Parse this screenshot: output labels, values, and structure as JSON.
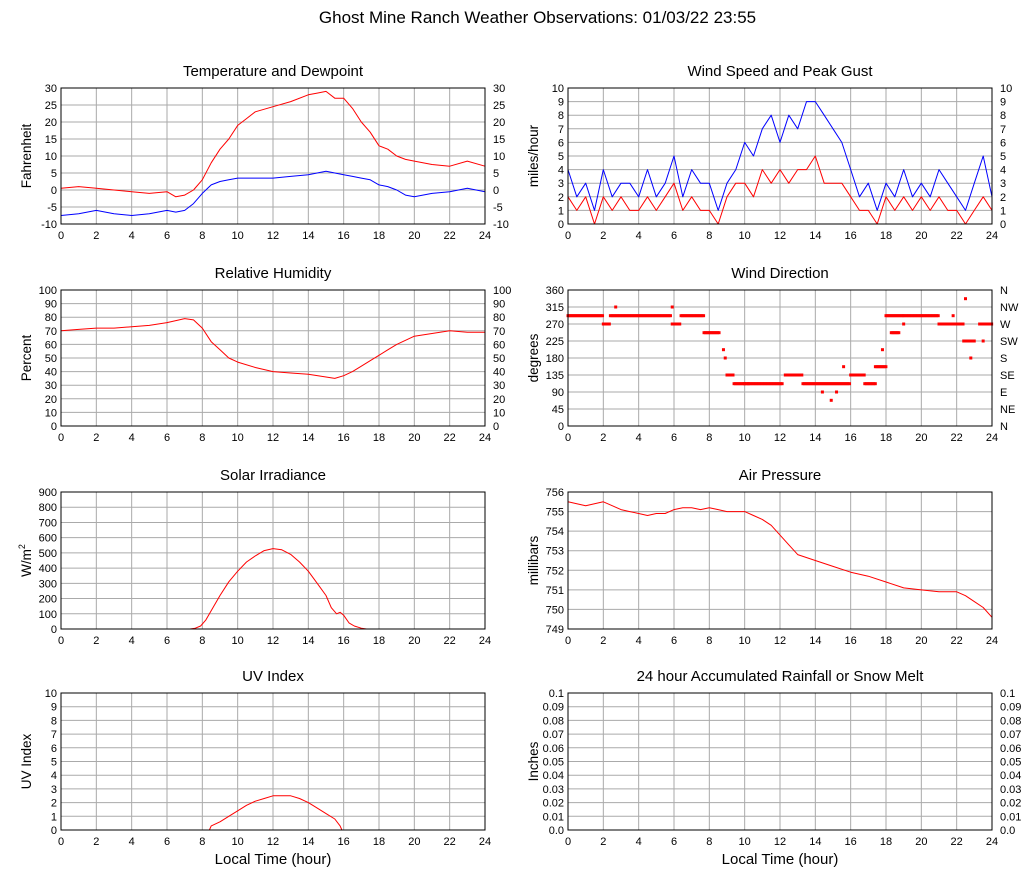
{
  "page_title": "Ghost Mine Ranch Weather Observations: 01/03/22 23:55",
  "colors": {
    "red": "#ff0000",
    "blue": "#0000ff",
    "grid": "#aaaaaa"
  },
  "chart_data": [
    {
      "id": "temp",
      "type": "line",
      "title": "Temperature and Dewpoint",
      "ylabel": "Fahrenheit",
      "xlabel": "",
      "xlim": [
        0,
        24
      ],
      "ylim": [
        -10,
        30
      ],
      "xticks": [
        0,
        2,
        4,
        6,
        8,
        10,
        12,
        14,
        16,
        18,
        20,
        22,
        24
      ],
      "yticks": [
        -10,
        -5,
        0,
        5,
        10,
        15,
        20,
        25,
        30
      ],
      "right_ticks": [
        "-10",
        "-5",
        "0",
        "5",
        "10",
        "15",
        "20",
        "25",
        "30"
      ],
      "series": [
        {
          "color": "#ff0000",
          "x": [
            0,
            1,
            2,
            3,
            4,
            5,
            6,
            6.5,
            7,
            7.5,
            8,
            8.5,
            9,
            9.5,
            10,
            10.5,
            11,
            12,
            13,
            14,
            14.5,
            15,
            15.5,
            16,
            16.5,
            17,
            17.5,
            18,
            18.5,
            19,
            19.5,
            20,
            21,
            22,
            23,
            24
          ],
          "y": [
            0.5,
            1,
            0.5,
            0,
            -0.5,
            -1,
            -0.5,
            -2,
            -1.5,
            0,
            3,
            8,
            12,
            15,
            19,
            21,
            23,
            24.5,
            26,
            28,
            28.5,
            29,
            27,
            27,
            24,
            20,
            17,
            13,
            12,
            10,
            9,
            8.5,
            7.5,
            7,
            8.5,
            7
          ]
        },
        {
          "color": "#0000ff",
          "x": [
            0,
            1,
            2,
            3,
            4,
            5,
            6,
            6.5,
            7,
            7.5,
            8,
            8.5,
            9,
            9.5,
            10,
            11,
            12,
            13,
            14,
            15,
            16,
            16.5,
            17,
            17.5,
            18,
            18.5,
            19,
            19.5,
            20,
            21,
            22,
            23,
            24
          ],
          "y": [
            -7.5,
            -7,
            -6,
            -7,
            -7.5,
            -7,
            -6,
            -6.5,
            -6,
            -4,
            -1,
            1.5,
            2.5,
            3,
            3.5,
            3.5,
            3.5,
            4,
            4.5,
            5.5,
            4.5,
            4,
            3.5,
            3,
            1.5,
            1,
            0,
            -1.5,
            -2,
            -1,
            -0.5,
            0.5,
            -0.5
          ]
        }
      ]
    },
    {
      "id": "wind",
      "type": "line",
      "title": "Wind Speed and Peak Gust",
      "ylabel": "miles/hour",
      "xlabel": "",
      "xlim": [
        0,
        24
      ],
      "ylim": [
        0,
        10
      ],
      "xticks": [
        0,
        2,
        4,
        6,
        8,
        10,
        12,
        14,
        16,
        18,
        20,
        22,
        24
      ],
      "yticks": [
        0,
        1,
        2,
        3,
        4,
        5,
        6,
        7,
        8,
        9,
        10
      ],
      "right_ticks": [
        "0",
        "1",
        "2",
        "3",
        "4",
        "5",
        "6",
        "7",
        "8",
        "9",
        "10"
      ],
      "series": [
        {
          "color": "#0000ff",
          "x": [
            0,
            0.5,
            1,
            1.5,
            2,
            2.5,
            3,
            3.5,
            4,
            4.5,
            5,
            5.5,
            6,
            6.5,
            7,
            7.5,
            8,
            8.5,
            9,
            9.5,
            10,
            10.5,
            11,
            11.5,
            12,
            12.5,
            13,
            13.5,
            14,
            14.5,
            15,
            15.5,
            16,
            16.5,
            17,
            17.5,
            18,
            18.5,
            19,
            19.5,
            20,
            20.5,
            21,
            21.5,
            22,
            22.5,
            23,
            23.5,
            24
          ],
          "y": [
            4,
            2,
            3,
            1,
            4,
            2,
            3,
            3,
            2,
            4,
            2,
            3,
            5,
            2,
            4,
            3,
            3,
            1,
            3,
            4,
            6,
            5,
            7,
            8,
            6,
            8,
            7,
            9,
            9,
            8,
            7,
            6,
            4,
            2,
            3,
            1,
            3,
            2,
            4,
            2,
            3,
            2,
            4,
            3,
            2,
            1,
            3,
            5,
            2
          ]
        },
        {
          "color": "#ff0000",
          "x": [
            0,
            0.5,
            1,
            1.5,
            2,
            2.5,
            3,
            3.5,
            4,
            4.5,
            5,
            5.5,
            6,
            6.5,
            7,
            7.5,
            8,
            8.5,
            9,
            9.5,
            10,
            10.5,
            11,
            11.5,
            12,
            12.5,
            13,
            13.5,
            14,
            14.5,
            15,
            15.5,
            16,
            16.5,
            17,
            17.5,
            18,
            18.5,
            19,
            19.5,
            20,
            20.5,
            21,
            21.5,
            22,
            22.5,
            23,
            23.5,
            24
          ],
          "y": [
            2,
            1,
            2,
            0,
            2,
            1,
            2,
            1,
            1,
            2,
            1,
            2,
            3,
            1,
            2,
            1,
            1,
            0,
            2,
            3,
            3,
            2,
            4,
            3,
            4,
            3,
            4,
            4,
            5,
            3,
            3,
            3,
            2,
            1,
            1,
            0,
            2,
            1,
            2,
            1,
            2,
            1,
            2,
            1,
            1,
            0,
            1,
            2,
            1
          ]
        }
      ]
    },
    {
      "id": "rh",
      "type": "line",
      "title": "Relative Humidity",
      "ylabel": "Percent",
      "xlabel": "",
      "xlim": [
        0,
        24
      ],
      "ylim": [
        0,
        100
      ],
      "xticks": [
        0,
        2,
        4,
        6,
        8,
        10,
        12,
        14,
        16,
        18,
        20,
        22,
        24
      ],
      "yticks": [
        0,
        10,
        20,
        30,
        40,
        50,
        60,
        70,
        80,
        90,
        100
      ],
      "right_ticks": [
        "0",
        "10",
        "20",
        "30",
        "40",
        "50",
        "60",
        "70",
        "80",
        "90",
        "100"
      ],
      "series": [
        {
          "color": "#ff0000",
          "x": [
            0,
            1,
            2,
            3,
            4,
            5,
            6,
            7,
            7.5,
            8,
            8.5,
            9,
            9.5,
            10,
            11,
            12,
            13,
            14,
            15,
            15.5,
            16,
            16.5,
            17,
            17.5,
            18,
            18.5,
            19,
            19.5,
            20,
            21,
            22,
            23,
            24
          ],
          "y": [
            70,
            71,
            72,
            72,
            73,
            74,
            76,
            79,
            78,
            72,
            62,
            56,
            50,
            47,
            43,
            40,
            39,
            38,
            36,
            35,
            37,
            40,
            44,
            48,
            52,
            56,
            60,
            63,
            66,
            68,
            70,
            69,
            69
          ]
        }
      ]
    },
    {
      "id": "dir",
      "type": "scatter",
      "title": "Wind Direction",
      "ylabel": "degrees",
      "xlabel": "",
      "xlim": [
        0,
        24
      ],
      "ylim": [
        0,
        360
      ],
      "xticks": [
        0,
        2,
        4,
        6,
        8,
        10,
        12,
        14,
        16,
        18,
        20,
        22,
        24
      ],
      "yticks": [
        0,
        45,
        90,
        135,
        180,
        225,
        270,
        315,
        360
      ],
      "right_ticks": [
        "N",
        "NE",
        "E",
        "SE",
        "S",
        "SW",
        "W",
        "NW",
        "N"
      ],
      "series": [
        {
          "color": "#ff0000",
          "segments": [
            [
              0,
              2,
              292
            ],
            [
              2,
              2.4,
              270
            ],
            [
              2.4,
              5.8,
              292
            ],
            [
              5.9,
              6.4,
              270
            ],
            [
              6.4,
              7.7,
              292
            ],
            [
              7.7,
              8.6,
              247
            ],
            [
              9,
              9.4,
              135
            ],
            [
              9.4,
              12.2,
              112
            ],
            [
              12.3,
              13.3,
              135
            ],
            [
              13.3,
              16,
              112
            ],
            [
              16,
              16.8,
              135
            ],
            [
              16.8,
              17.4,
              112
            ],
            [
              17.4,
              18,
              157
            ],
            [
              18,
              19,
              292
            ],
            [
              18.3,
              18.8,
              247
            ],
            [
              19,
              21,
              292
            ],
            [
              21,
              22.4,
              270
            ],
            [
              22.4,
              23,
              225
            ],
            [
              23.3,
              24,
              270
            ]
          ],
          "singles": [
            [
              2.7,
              315
            ],
            [
              5.9,
              315
            ],
            [
              8.8,
              202
            ],
            [
              8.9,
              180
            ],
            [
              10,
              112
            ],
            [
              10.2,
              112
            ],
            [
              14.4,
              90
            ],
            [
              14.9,
              68
            ],
            [
              15.2,
              90
            ],
            [
              15.6,
              157
            ],
            [
              17.8,
              202
            ],
            [
              19,
              270
            ],
            [
              21.8,
              292
            ],
            [
              22.5,
              337
            ],
            [
              22.8,
              180
            ],
            [
              23.5,
              225
            ]
          ]
        }
      ]
    },
    {
      "id": "solar",
      "type": "line",
      "title": "Solar Irradiance",
      "ylabel": "W/m",
      "ylabel_sup": "2",
      "xlabel": "",
      "xlim": [
        0,
        24
      ],
      "ylim": [
        0,
        900
      ],
      "xticks": [
        0,
        2,
        4,
        6,
        8,
        10,
        12,
        14,
        16,
        18,
        20,
        22,
        24
      ],
      "yticks": [
        0,
        100,
        200,
        300,
        400,
        500,
        600,
        700,
        800,
        900
      ],
      "right_ticks": [],
      "series": [
        {
          "color": "#ff0000",
          "x": [
            0,
            7.3,
            7.6,
            7.9,
            8.2,
            8.6,
            9,
            9.5,
            10,
            10.5,
            11,
            11.5,
            12,
            12.5,
            13,
            13.5,
            14,
            14.5,
            15,
            15.3,
            15.6,
            15.8,
            16,
            16.3,
            16.6,
            17,
            17.3,
            24
          ],
          "y": [
            0,
            0,
            5,
            20,
            60,
            140,
            220,
            310,
            380,
            440,
            480,
            515,
            528,
            520,
            490,
            440,
            380,
            300,
            220,
            140,
            100,
            110,
            90,
            40,
            20,
            5,
            0,
            0
          ]
        }
      ]
    },
    {
      "id": "pressure",
      "type": "line",
      "title": "Air Pressure",
      "ylabel": "millibars",
      "xlabel": "",
      "xlim": [
        0,
        24
      ],
      "ylim": [
        749,
        756
      ],
      "xticks": [
        0,
        2,
        4,
        6,
        8,
        10,
        12,
        14,
        16,
        18,
        20,
        22,
        24
      ],
      "yticks": [
        749,
        750,
        751,
        752,
        753,
        754,
        755,
        756
      ],
      "right_ticks": [],
      "series": [
        {
          "color": "#ff0000",
          "x": [
            0,
            0.5,
            1,
            1.5,
            2,
            2.5,
            3,
            3.5,
            4,
            4.5,
            5,
            5.5,
            6,
            6.5,
            7,
            7.5,
            8,
            8.5,
            9,
            9.5,
            10,
            10.5,
            11,
            11.5,
            12,
            12.5,
            13,
            14,
            15,
            16,
            17,
            18,
            19,
            20,
            21,
            22,
            22.5,
            23,
            23.5,
            24
          ],
          "y": [
            755.5,
            755.4,
            755.3,
            755.4,
            755.5,
            755.3,
            755.1,
            755.0,
            754.9,
            754.8,
            754.9,
            754.9,
            755.1,
            755.2,
            755.2,
            755.1,
            755.2,
            755.1,
            755.0,
            755.0,
            755.0,
            754.8,
            754.6,
            754.3,
            753.8,
            753.3,
            752.8,
            752.5,
            752.2,
            751.9,
            751.7,
            751.4,
            751.1,
            751.0,
            750.9,
            750.9,
            750.7,
            750.4,
            750.1,
            749.6
          ]
        }
      ]
    },
    {
      "id": "uv",
      "type": "line",
      "title": "UV Index",
      "ylabel": "UV Index",
      "xlabel": "Local Time (hour)",
      "xlim": [
        0,
        24
      ],
      "ylim": [
        0,
        10
      ],
      "xticks": [
        0,
        2,
        4,
        6,
        8,
        10,
        12,
        14,
        16,
        18,
        20,
        22,
        24
      ],
      "yticks": [
        0,
        1,
        2,
        3,
        4,
        5,
        6,
        7,
        8,
        9,
        10
      ],
      "right_ticks": [],
      "series": [
        {
          "color": "#ff0000",
          "x": [
            0,
            8.4,
            8.5,
            9,
            9.5,
            10,
            10.5,
            11,
            11.5,
            12,
            12.5,
            13,
            13.5,
            14,
            14.5,
            15,
            15.5,
            15.8,
            15.9,
            24
          ],
          "y": [
            0,
            0,
            0.3,
            0.6,
            1,
            1.4,
            1.8,
            2.1,
            2.3,
            2.5,
            2.5,
            2.5,
            2.3,
            2,
            1.6,
            1.2,
            0.8,
            0.3,
            0,
            0
          ]
        }
      ]
    },
    {
      "id": "rain",
      "type": "line",
      "title": "24 hour Accumulated Rainfall or Snow Melt",
      "ylabel": "Inches",
      "xlabel": "Local Time (hour)",
      "xlim": [
        0,
        24
      ],
      "ylim": [
        0,
        0.1
      ],
      "xticks": [
        0,
        2,
        4,
        6,
        8,
        10,
        12,
        14,
        16,
        18,
        20,
        22,
        24
      ],
      "yticks": [
        0,
        0.01,
        0.02,
        0.03,
        0.04,
        0.05,
        0.06,
        0.07,
        0.08,
        0.09,
        0.1
      ],
      "ytick_labels": [
        "0.0",
        "0.01",
        "0.02",
        "0.03",
        "0.04",
        "0.05",
        "0.06",
        "0.07",
        "0.08",
        "0.09",
        "0.1"
      ],
      "right_ticks": [
        "0.0",
        "0.01",
        "0.02",
        "0.03",
        "0.04",
        "0.05",
        "0.06",
        "0.07",
        "0.08",
        "0.09",
        "0.1"
      ],
      "series": [
        {
          "color": "#ff0000",
          "x": [
            0,
            24
          ],
          "y": [
            0,
            0
          ]
        }
      ]
    }
  ]
}
